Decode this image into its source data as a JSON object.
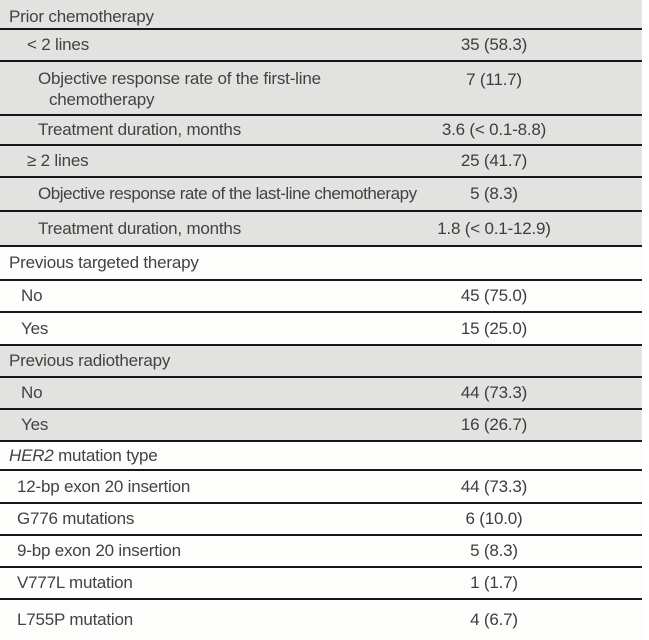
{
  "table": {
    "rows": [
      {
        "label": "Prior chemotherapy"
      },
      {
        "label": "< 2 lines",
        "value": "35 (58.3)"
      },
      {
        "label": "Objective response rate of the first-line",
        "label2": "chemotherapy",
        "value": "7 (11.7)"
      },
      {
        "label": "Treatment duration, months",
        "value": "3.6 (< 0.1-8.8)"
      },
      {
        "label": "≥ 2 lines",
        "value": "25 (41.7)"
      },
      {
        "label": "Objective response rate of the last-line chemotherapy",
        "value": "5 (8.3)"
      },
      {
        "label": "Treatment duration, months",
        "value": "1.8 (< 0.1-12.9)"
      },
      {
        "label": "Previous targeted therapy"
      },
      {
        "label": "No",
        "value": "45 (75.0)"
      },
      {
        "label": "Yes",
        "value": "15 (25.0)"
      },
      {
        "label": "Previous radiotherapy"
      },
      {
        "label": "No",
        "value": "44 (73.3)"
      },
      {
        "label": "Yes",
        "value": "16 (26.7)"
      },
      {
        "italic": "HER2",
        "label": " mutation type"
      },
      {
        "label": "12-bp exon 20 insertion",
        "value": "44 (73.3)"
      },
      {
        "label": "G776 mutations",
        "value": "6 (10.0)"
      },
      {
        "label": "9-bp exon 20 insertion",
        "value": "5 (8.3)"
      },
      {
        "label": "V777L mutation",
        "value": "1 (1.7)"
      },
      {
        "label": "L755P mutation",
        "value": "4 (6.7)"
      }
    ]
  },
  "colors": {
    "row_shade": "#e2e3e0",
    "rule": "#171717",
    "text": "#424242",
    "background": "#ffffff"
  }
}
